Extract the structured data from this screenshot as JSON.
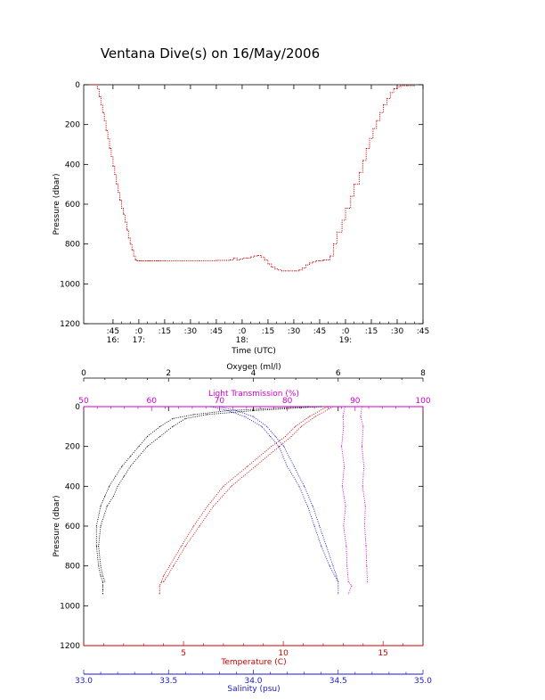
{
  "title": "Ventana Dive(s) on 16/May/2006",
  "chart_data": [
    {
      "type": "line",
      "panel": "pressure-time",
      "ylabel": "Pressure (dbar)",
      "xlabel": "Time (UTC)",
      "y_inverted": true,
      "ylim": [
        0,
        1200
      ],
      "y_ticks": [
        "0",
        "200",
        "400",
        "600",
        "800",
        "1000",
        "1200"
      ],
      "x_minutes_range": [
        -17,
        180
      ],
      "x_ticks": [
        {
          "m": 0,
          "label": ":45",
          "hour": "16:"
        },
        {
          "m": 15,
          "label": ":0",
          "hour": "17:"
        },
        {
          "m": 30,
          "label": ":15",
          "hour": ""
        },
        {
          "m": 45,
          "label": ":30",
          "hour": ""
        },
        {
          "m": 60,
          "label": ":45",
          "hour": ""
        },
        {
          "m": 75,
          "label": ":0",
          "hour": "18:"
        },
        {
          "m": 90,
          "label": ":15",
          "hour": ""
        },
        {
          "m": 105,
          "label": ":30",
          "hour": ""
        },
        {
          "m": 120,
          "label": ":45",
          "hour": ""
        },
        {
          "m": 135,
          "label": ":0",
          "hour": "19:"
        },
        {
          "m": 150,
          "label": ":15",
          "hour": ""
        },
        {
          "m": 165,
          "label": ":30",
          "hour": ""
        },
        {
          "m": 180,
          "label": ":45",
          "hour": ""
        }
      ],
      "series": [
        {
          "color": "#cc0000",
          "time_minutes": [
            -13,
            -10,
            -9,
            -8,
            -7,
            -6,
            -5,
            -4,
            -3,
            -2,
            -1,
            0,
            1,
            2,
            3,
            4,
            5,
            6,
            7,
            8,
            9,
            10,
            11,
            12,
            13,
            14,
            15,
            16,
            17,
            18,
            19,
            20,
            21,
            22,
            23,
            24,
            25,
            26,
            27,
            28,
            29,
            30,
            40,
            50,
            60,
            68,
            70,
            72,
            74,
            76,
            78,
            80,
            82,
            84,
            86,
            88,
            90,
            92,
            94,
            96,
            98,
            100,
            102,
            104,
            106,
            108,
            110,
            112,
            114,
            116,
            118,
            120,
            122,
            124,
            126,
            128,
            130,
            133,
            135,
            138,
            140,
            143,
            145,
            147,
            149,
            151,
            153,
            155,
            157,
            159,
            161,
            163,
            165,
            167,
            169,
            171,
            173,
            175
          ],
          "pressure": [
            0,
            0,
            20,
            60,
            100,
            140,
            180,
            230,
            270,
            320,
            360,
            410,
            450,
            500,
            540,
            580,
            620,
            650,
            690,
            730,
            770,
            800,
            830,
            860,
            880,
            885,
            885,
            885,
            885,
            885,
            885,
            885,
            885,
            885,
            885,
            885,
            885,
            885,
            885,
            885,
            885,
            885,
            885,
            885,
            882,
            880,
            870,
            880,
            875,
            870,
            870,
            865,
            860,
            858,
            865,
            880,
            900,
            915,
            925,
            930,
            935,
            935,
            935,
            935,
            935,
            930,
            920,
            905,
            895,
            890,
            885,
            885,
            880,
            880,
            860,
            800,
            740,
            680,
            620,
            560,
            500,
            440,
            380,
            320,
            270,
            220,
            180,
            140,
            100,
            70,
            40,
            20,
            10,
            5,
            5,
            5,
            5,
            5
          ]
        }
      ]
    },
    {
      "type": "line",
      "panel": "profiles",
      "ylabel": "Pressure (dbar)",
      "y_inverted": true,
      "ylim": [
        0,
        1200
      ],
      "y_ticks": [
        "0",
        "200",
        "400",
        "600",
        "800",
        "1000",
        "1200"
      ],
      "axes": {
        "oxygen": {
          "label": "Oxygen (ml/l)",
          "range": [
            0,
            8
          ],
          "ticks": [
            "0",
            "2",
            "4",
            "6",
            "8"
          ],
          "color": "#000000"
        },
        "transmission": {
          "label": "Light Transmission (%)",
          "range": [
            50,
            100
          ],
          "ticks": [
            "50",
            "60",
            "70",
            "80",
            "90",
            "100"
          ],
          "color": "#cc00cc"
        },
        "temperature": {
          "label": "Temperature (C)",
          "range": [
            0,
            17
          ],
          "ticks": [
            "5",
            "10",
            "15"
          ],
          "tick_values": [
            5,
            10,
            15
          ],
          "color": "#cc0000"
        },
        "salinity": {
          "label": "Salinity (psu)",
          "range": [
            33.0,
            35.0
          ],
          "ticks": [
            "33.0",
            "33.5",
            "34.0",
            "34.5",
            "35.0"
          ],
          "color": "#1a1acc"
        }
      },
      "series": [
        {
          "name": "Oxygen",
          "axis": "oxygen",
          "color": "#000000",
          "pressure": [
            0,
            20,
            40,
            60,
            100,
            150,
            200,
            250,
            300,
            350,
            400,
            450,
            500,
            600,
            700,
            800,
            850,
            880,
            900,
            920,
            940
          ],
          "values": [
            5.3,
            3.4,
            2.6,
            2.1,
            1.8,
            1.5,
            1.3,
            1.1,
            0.9,
            0.75,
            0.6,
            0.5,
            0.4,
            0.3,
            0.3,
            0.35,
            0.4,
            0.45,
            0.45,
            0.45,
            0.45
          ]
        },
        {
          "name": "Oxygen-up",
          "axis": "oxygen",
          "color": "#000000",
          "pressure": [
            0,
            20,
            40,
            60,
            100,
            150,
            200,
            250,
            300,
            350,
            400,
            450,
            500,
            600,
            700,
            800,
            850,
            880
          ],
          "values": [
            5.6,
            4.0,
            2.9,
            2.4,
            2.1,
            1.8,
            1.5,
            1.3,
            1.1,
            0.95,
            0.8,
            0.7,
            0.55,
            0.4,
            0.35,
            0.4,
            0.45,
            0.5
          ]
        },
        {
          "name": "Temperature",
          "axis": "temperature",
          "color": "#cc0000",
          "pressure": [
            0,
            50,
            100,
            150,
            200,
            300,
            400,
            500,
            600,
            700,
            800,
            850,
            880,
            900,
            940
          ],
          "values": [
            12.2,
            11.3,
            10.6,
            10.1,
            9.4,
            8.2,
            7.0,
            6.2,
            5.5,
            4.9,
            4.3,
            4.0,
            3.9,
            3.8,
            3.8
          ]
        },
        {
          "name": "Temperature-up",
          "axis": "temperature",
          "color": "#cc0000",
          "pressure": [
            0,
            50,
            100,
            150,
            200,
            300,
            400,
            500,
            600,
            700,
            800,
            850,
            880
          ],
          "values": [
            12.5,
            11.6,
            10.9,
            10.4,
            9.8,
            8.6,
            7.4,
            6.5,
            5.8,
            5.1,
            4.5,
            4.2,
            4.0
          ]
        },
        {
          "name": "Salinity",
          "axis": "salinity",
          "color": "#1a1acc",
          "pressure": [
            0,
            20,
            50,
            100,
            150,
            200,
            300,
            400,
            500,
            600,
            700,
            800,
            850,
            880,
            900,
            940
          ],
          "values": [
            33.75,
            33.85,
            33.95,
            34.05,
            34.1,
            34.15,
            34.2,
            34.27,
            34.32,
            34.36,
            34.4,
            34.45,
            34.48,
            34.5,
            34.5,
            34.5
          ]
        },
        {
          "name": "Salinity-up",
          "axis": "salinity",
          "color": "#1a1acc",
          "pressure": [
            0,
            20,
            50,
            100,
            150,
            200,
            300,
            400,
            500,
            600,
            700,
            800,
            850,
            880
          ],
          "values": [
            33.8,
            33.9,
            34.0,
            34.08,
            34.13,
            34.18,
            34.24,
            34.3,
            34.35,
            34.39,
            34.43,
            34.47,
            34.49,
            34.5
          ]
        },
        {
          "name": "Transmission",
          "axis": "transmission",
          "color": "#cc00cc",
          "pressure": [
            0,
            50,
            100,
            200,
            300,
            400,
            500,
            600,
            700,
            800,
            880,
            900,
            940
          ],
          "values": [
            88.5,
            88.2,
            88.3,
            88.0,
            88.4,
            88.1,
            88.6,
            88.3,
            88.7,
            88.8,
            89.0,
            89.5,
            89.0
          ]
        },
        {
          "name": "Transmission-up",
          "axis": "transmission",
          "color": "#cc00cc",
          "pressure": [
            0,
            50,
            100,
            200,
            300,
            400,
            500,
            600,
            700,
            800,
            880
          ],
          "values": [
            91.0,
            90.8,
            91.2,
            91.0,
            91.3,
            91.1,
            91.5,
            91.4,
            91.6,
            91.7,
            91.8
          ]
        }
      ]
    }
  ]
}
